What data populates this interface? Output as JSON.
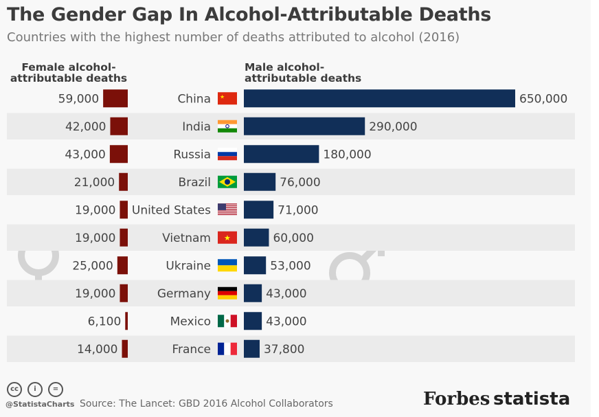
{
  "title": "The Gender Gap In Alcohol-Attributable Deaths",
  "subtitle": "Countries with the highest number of deaths attributed to alcohol (2016)",
  "chart_data": {
    "type": "bar",
    "orientation": "horizontal-butterfly",
    "categories": [
      "China",
      "India",
      "Russia",
      "Brazil",
      "United States",
      "Vietnam",
      "Ukraine",
      "Germany",
      "Mexico",
      "France"
    ],
    "series": [
      {
        "name": "Female alcohol-attributable deaths",
        "values": [
          59000,
          42000,
          43000,
          21000,
          19000,
          19000,
          25000,
          19000,
          6100,
          14000
        ],
        "labels": [
          "59,000",
          "42,000",
          "43,000",
          "21,000",
          "19,000",
          "19,000",
          "25,000",
          "19,000",
          "6,100",
          "14,000"
        ],
        "color": "#7b1009"
      },
      {
        "name": "Male alcohol-attributable deaths",
        "values": [
          650000,
          290000,
          180000,
          76000,
          71000,
          60000,
          53000,
          43000,
          43000,
          37800
        ],
        "labels": [
          "650,000",
          "290,000",
          "180,000",
          "76,000",
          "71,000",
          "60,000",
          "53,000",
          "43,000",
          "43,000",
          "37,800"
        ],
        "color": "#112f58"
      }
    ],
    "flags": [
      "china",
      "india",
      "russia",
      "brazil",
      "usa",
      "vietnam",
      "ukraine",
      "germany",
      "mexico",
      "france"
    ],
    "row_stripe_color": "#ebebeb"
  },
  "headers": {
    "female_line1": "Female alcohol-",
    "female_line2": "attributable deaths",
    "male_line1": "Male alcohol-",
    "male_line2": "attributable deaths"
  },
  "footer": {
    "handle": "@StatistaCharts",
    "source": "Source: The Lancet: GBD 2016 Alcohol Collaborators",
    "logo1": "Forbes",
    "logo2": "statista"
  }
}
